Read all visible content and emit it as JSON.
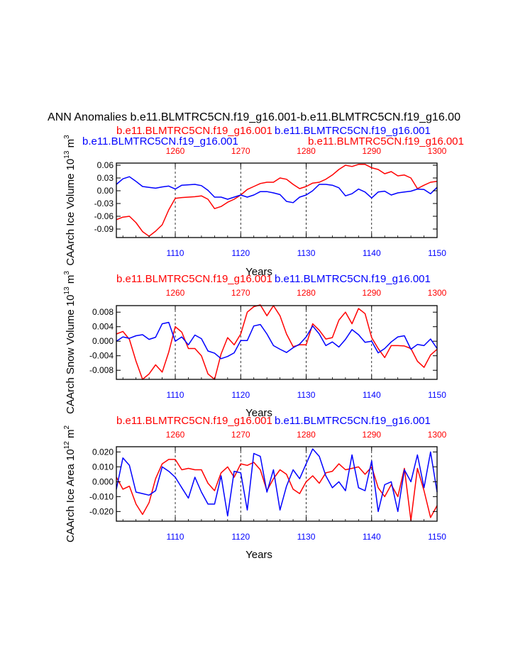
{
  "main_title": "ANN Anomalies b.e11.BLMTRC5CN.f19_g16.001-b.e11.BLMTRC5CN.f19_g16.00",
  "colors": {
    "series_a": "#ff0000",
    "series_b": "#0000ff",
    "axis": "#000000"
  },
  "chart_data": [
    {
      "type": "line",
      "top_labels": [
        "b.e11.BLMTRC5CN.f19_g16.001",
        "b.e11.BLMTRC5CN.f19_g16.001",
        "b.e11.BLMTRC5CN.f19_g16.001",
        "b.e11.BLMTRC5CN.f19_g16.001"
      ],
      "ylabel": "CAArch Ice Volume",
      "ylabel_exp": "10",
      "ylabel_exp_sup": "13",
      "ylabel_unit": "m",
      "ylabel_unit_sup": "3",
      "xlabel": "Years",
      "xlim_bottom": [
        1101,
        1150
      ],
      "xlim_top": [
        1251,
        1300
      ],
      "ylim": [
        -0.11,
        0.065
      ],
      "yticks": [
        0.06,
        0.03,
        0.0,
        -0.03,
        -0.06,
        -0.09
      ],
      "ytick_labels": [
        "0.06",
        "0.03",
        "0.00",
        "-0.03",
        "-0.06",
        "-0.09"
      ],
      "xticks_bottom": [
        1110,
        1120,
        1130,
        1140,
        1150
      ],
      "xticks_top": [
        1260,
        1270,
        1280,
        1290,
        1300
      ],
      "series": [
        {
          "name": "red",
          "axis": "top",
          "x": [
            1251,
            1252,
            1253,
            1254,
            1255,
            1256,
            1257,
            1258,
            1259,
            1260,
            1261,
            1262,
            1263,
            1264,
            1265,
            1266,
            1267,
            1268,
            1269,
            1270,
            1271,
            1272,
            1273,
            1274,
            1275,
            1276,
            1277,
            1278,
            1279,
            1280,
            1281,
            1282,
            1283,
            1284,
            1285,
            1286,
            1287,
            1288,
            1289,
            1290,
            1291,
            1292,
            1293,
            1294,
            1295,
            1296,
            1297,
            1298,
            1299,
            1300
          ],
          "values": [
            -0.068,
            -0.062,
            -0.06,
            -0.075,
            -0.096,
            -0.107,
            -0.095,
            -0.08,
            -0.045,
            -0.018,
            -0.016,
            -0.015,
            -0.014,
            -0.012,
            -0.02,
            -0.042,
            -0.037,
            -0.027,
            -0.02,
            -0.01,
            0.003,
            0.01,
            0.017,
            0.02,
            0.02,
            0.03,
            0.027,
            0.015,
            0.005,
            0.01,
            0.018,
            0.02,
            0.027,
            0.037,
            0.05,
            0.06,
            0.057,
            0.062,
            0.062,
            0.054,
            0.05,
            0.04,
            0.045,
            0.035,
            0.037,
            0.03,
            0.005,
            0.013,
            0.02,
            0.022
          ]
        },
        {
          "name": "blue",
          "axis": "bottom",
          "x": [
            1101,
            1102,
            1103,
            1104,
            1105,
            1106,
            1107,
            1108,
            1109,
            1110,
            1111,
            1112,
            1113,
            1114,
            1115,
            1116,
            1117,
            1118,
            1119,
            1120,
            1121,
            1122,
            1123,
            1124,
            1125,
            1126,
            1127,
            1128,
            1129,
            1130,
            1131,
            1132,
            1133,
            1134,
            1135,
            1136,
            1137,
            1138,
            1139,
            1140,
            1141,
            1142,
            1143,
            1144,
            1145,
            1146,
            1147,
            1148,
            1149,
            1150
          ],
          "values": [
            0.015,
            0.028,
            0.033,
            0.022,
            0.01,
            0.008,
            0.006,
            0.009,
            0.011,
            0.004,
            0.013,
            0.014,
            0.015,
            0.012,
            0.001,
            -0.015,
            -0.015,
            -0.02,
            -0.015,
            -0.01,
            -0.015,
            -0.01,
            -0.002,
            -0.002,
            -0.005,
            -0.009,
            -0.025,
            -0.028,
            -0.015,
            -0.01,
            0.0,
            0.015,
            0.015,
            0.013,
            0.007,
            -0.012,
            -0.007,
            0.004,
            -0.003,
            -0.017,
            -0.003,
            -0.001,
            -0.01,
            -0.005,
            -0.003,
            -0.001,
            0.004,
            0.003,
            -0.007,
            0.008
          ]
        }
      ]
    },
    {
      "type": "line",
      "top_labels": [
        "b.e11.BLMTRC5CN.f19_g16.001",
        "b.e11.BLMTRC5CN.f19_g16.001"
      ],
      "ylabel": "CAArch Snow Volume",
      "ylabel_exp": "10",
      "ylabel_exp_sup": "13",
      "ylabel_unit": "m",
      "ylabel_unit_sup": "3",
      "xlabel": "Years",
      "xlim_bottom": [
        1101,
        1150
      ],
      "xlim_top": [
        1251,
        1300
      ],
      "ylim": [
        -0.0105,
        0.0098
      ],
      "yticks": [
        0.008,
        0.004,
        0.0,
        -0.004,
        -0.008
      ],
      "ytick_labels": [
        "0.008",
        "0.004",
        "0.000",
        "-0.004",
        "-0.008"
      ],
      "xticks_bottom": [
        1110,
        1120,
        1130,
        1140,
        1150
      ],
      "xticks_top": [
        1260,
        1270,
        1280,
        1290,
        1300
      ],
      "series": [
        {
          "name": "red",
          "axis": "top",
          "x": [
            1251,
            1252,
            1253,
            1254,
            1255,
            1256,
            1257,
            1258,
            1259,
            1260,
            1261,
            1262,
            1263,
            1264,
            1265,
            1266,
            1267,
            1268,
            1269,
            1270,
            1271,
            1272,
            1273,
            1274,
            1275,
            1276,
            1277,
            1278,
            1279,
            1280,
            1281,
            1282,
            1283,
            1284,
            1285,
            1286,
            1287,
            1288,
            1289,
            1290,
            1291,
            1292,
            1293,
            1294,
            1295,
            1296,
            1297,
            1298,
            1299,
            1300
          ],
          "values": [
            0.002,
            0.0027,
            0.0005,
            -0.0055,
            -0.0105,
            -0.009,
            -0.0065,
            -0.0085,
            -0.003,
            0.004,
            0.0025,
            -0.002,
            -0.002,
            -0.004,
            -0.009,
            -0.0105,
            -0.0035,
            0.001,
            -0.001,
            0.002,
            0.008,
            0.0095,
            0.01,
            0.007,
            0.0098,
            0.007,
            0.002,
            -0.0015,
            -0.001,
            -0.001,
            0.0048,
            0.003,
            0.0006,
            0.001,
            0.0058,
            0.008,
            0.0048,
            0.009,
            0.0076,
            0.001,
            -0.002,
            -0.0045,
            -0.0012,
            -0.0012,
            -0.0013,
            -0.002,
            -0.0055,
            -0.0072,
            -0.0038,
            -0.0022
          ]
        },
        {
          "name": "blue",
          "axis": "bottom",
          "x": [
            1101,
            1102,
            1103,
            1104,
            1105,
            1106,
            1107,
            1108,
            1109,
            1110,
            1111,
            1112,
            1113,
            1114,
            1115,
            1116,
            1117,
            1118,
            1119,
            1120,
            1121,
            1122,
            1123,
            1124,
            1125,
            1126,
            1127,
            1128,
            1129,
            1130,
            1131,
            1132,
            1133,
            1134,
            1135,
            1136,
            1137,
            1138,
            1139,
            1140,
            1141,
            1142,
            1143,
            1144,
            1145,
            1146,
            1147,
            1148,
            1149,
            1150
          ],
          "values": [
            0.0,
            0.0012,
            0.0008,
            0.0015,
            0.0018,
            0.0005,
            0.0011,
            0.0048,
            0.0052,
            0.0,
            0.0012,
            -0.001,
            0.0017,
            0.0007,
            -0.0027,
            -0.0033,
            -0.0048,
            -0.0042,
            -0.0032,
            0.0002,
            0.0002,
            0.0042,
            0.0046,
            0.002,
            -0.0012,
            -0.0022,
            -0.0031,
            -0.0018,
            -0.0008,
            0.0012,
            0.0042,
            0.002,
            -0.0012,
            -0.0002,
            -0.0016,
            0.0005,
            0.0032,
            0.0018,
            -0.0003,
            0.0,
            -0.0032,
            -0.002,
            -0.0002,
            0.0012,
            0.0015,
            -0.0022,
            -0.0009,
            -0.0012,
            0.0006,
            -0.002
          ]
        }
      ]
    },
    {
      "type": "line",
      "top_labels": [
        "b.e11.BLMTRC5CN.f19_g16.001",
        "b.e11.BLMTRC5CN.f19_g16.001"
      ],
      "ylabel": "CAArch Ice Area",
      "ylabel_exp": "10",
      "ylabel_exp_sup": "12",
      "ylabel_unit": "m",
      "ylabel_unit_sup": "2",
      "xlabel": "Years",
      "xlim_bottom": [
        1101,
        1150
      ],
      "xlim_top": [
        1251,
        1300
      ],
      "ylim": [
        -0.0265,
        0.0235
      ],
      "yticks": [
        0.02,
        0.01,
        0.0,
        -0.01,
        -0.02
      ],
      "ytick_labels": [
        "0.020",
        "0.010",
        "0.000",
        "-0.010",
        "-0.020"
      ],
      "xticks_bottom": [
        1110,
        1120,
        1130,
        1140,
        1150
      ],
      "xticks_top": [
        1260,
        1270,
        1280,
        1290,
        1300
      ],
      "series": [
        {
          "name": "red",
          "axis": "top",
          "x": [
            1251,
            1252,
            1253,
            1254,
            1255,
            1256,
            1257,
            1258,
            1259,
            1260,
            1261,
            1262,
            1263,
            1264,
            1265,
            1266,
            1267,
            1268,
            1269,
            1270,
            1271,
            1272,
            1273,
            1274,
            1275,
            1276,
            1277,
            1278,
            1279,
            1280,
            1281,
            1282,
            1283,
            1284,
            1285,
            1286,
            1287,
            1288,
            1289,
            1290,
            1291,
            1292,
            1293,
            1294,
            1295,
            1296,
            1297,
            1298,
            1299,
            1300
          ],
          "values": [
            0.003,
            -0.005,
            -0.003,
            -0.015,
            -0.022,
            -0.014,
            0.002,
            0.012,
            0.015,
            0.015,
            0.008,
            0.009,
            0.008,
            0.008,
            -0.001,
            -0.006,
            0.006,
            0.01,
            0.003,
            0.012,
            0.011,
            0.013,
            0.008,
            -0.006,
            0.002,
            0.008,
            0.005,
            -0.005,
            -0.008,
            0.0,
            0.004,
            -0.001,
            0.006,
            0.007,
            0.012,
            0.008,
            0.009,
            0.01,
            0.005,
            0.01,
            -0.004,
            -0.01,
            -0.002,
            -0.01,
            0.009,
            -0.026,
            0.009,
            -0.006,
            -0.024,
            -0.016
          ]
        },
        {
          "name": "blue",
          "axis": "bottom",
          "x": [
            1101,
            1102,
            1103,
            1104,
            1105,
            1106,
            1107,
            1108,
            1109,
            1110,
            1111,
            1112,
            1113,
            1114,
            1115,
            1116,
            1117,
            1118,
            1119,
            1120,
            1121,
            1122,
            1123,
            1124,
            1125,
            1126,
            1127,
            1128,
            1129,
            1130,
            1131,
            1132,
            1133,
            1134,
            1135,
            1136,
            1137,
            1138,
            1139,
            1140,
            1141,
            1142,
            1143,
            1144,
            1145,
            1146,
            1147,
            1148,
            1149,
            1150
          ],
          "values": [
            -0.005,
            0.016,
            0.011,
            -0.007,
            -0.008,
            -0.009,
            -0.006,
            0.01,
            0.007,
            0.003,
            -0.004,
            -0.011,
            0.003,
            -0.007,
            -0.015,
            -0.015,
            0.004,
            -0.023,
            0.007,
            0.006,
            -0.019,
            0.019,
            0.017,
            -0.007,
            0.008,
            -0.019,
            -0.003,
            0.008,
            0.002,
            0.012,
            0.022,
            0.017,
            0.004,
            -0.004,
            0.0,
            -0.006,
            0.018,
            -0.004,
            -0.006,
            0.014,
            -0.02,
            -0.002,
            0.0,
            -0.02,
            0.008,
            0.0,
            0.018,
            -0.004,
            0.02,
            -0.007
          ]
        }
      ]
    }
  ]
}
